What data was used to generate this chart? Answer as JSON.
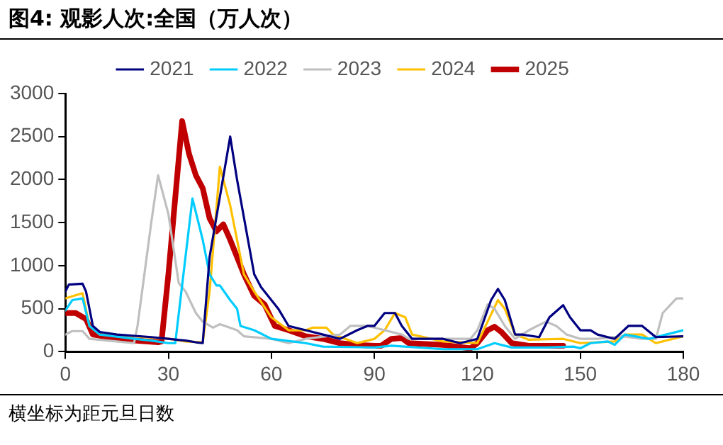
{
  "chart_data": {
    "type": "line",
    "title": "图4:  观影人次:全国（万人次）",
    "annotations": [
      "横坐标为距元旦日数"
    ],
    "xlim": [
      0,
      180
    ],
    "xticks": [
      0,
      30,
      60,
      90,
      120,
      150,
      180
    ],
    "ylim": [
      0,
      3000
    ],
    "yticks": [
      0,
      500,
      1000,
      1500,
      2000,
      2500,
      3000
    ],
    "grid": false,
    "legend": "top",
    "marker": "none",
    "series": [
      {
        "name": "2021",
        "color": "#000080",
        "x": [
          0,
          1,
          5,
          6,
          8,
          10,
          15,
          25,
          30,
          35,
          38,
          40,
          42,
          45,
          48,
          50,
          55,
          57,
          62,
          65,
          70,
          75,
          80,
          85,
          88,
          90,
          93,
          96,
          98,
          101,
          110,
          115,
          120,
          124,
          126,
          128,
          131,
          133,
          138,
          141,
          145,
          147,
          150,
          153,
          155,
          160,
          164,
          168,
          172,
          180
        ],
        "values": [
          700,
          780,
          790,
          700,
          300,
          230,
          200,
          170,
          150,
          130,
          110,
          100,
          1100,
          1800,
          2500,
          2000,
          900,
          750,
          500,
          300,
          250,
          200,
          150,
          250,
          300,
          300,
          450,
          450,
          300,
          150,
          150,
          100,
          150,
          600,
          730,
          600,
          200,
          200,
          170,
          400,
          540,
          400,
          250,
          250,
          200,
          150,
          300,
          300,
          170,
          180
        ]
      },
      {
        "name": "2022",
        "color": "#00ccff",
        "x": [
          0,
          2,
          5,
          7,
          10,
          20,
          25,
          30,
          32,
          37,
          40,
          42,
          44,
          45,
          48,
          50,
          51,
          55,
          60,
          70,
          75,
          90,
          95,
          110,
          120,
          125,
          130,
          140,
          148,
          150,
          153,
          158,
          160,
          163,
          170,
          175,
          180
        ],
        "values": [
          480,
          600,
          620,
          300,
          200,
          150,
          130,
          100,
          100,
          1780,
          1300,
          900,
          770,
          770,
          600,
          500,
          300,
          250,
          150,
          100,
          60,
          50,
          70,
          30,
          30,
          100,
          50,
          50,
          60,
          40,
          100,
          120,
          80,
          200,
          150,
          200,
          250
        ]
      },
      {
        "name": "2023",
        "color": "#bfbfbf",
        "x": [
          0,
          2,
          5,
          7,
          15,
          20,
          21,
          25,
          27,
          30,
          33,
          35,
          38,
          40,
          43,
          45,
          50,
          52,
          60,
          65,
          70,
          80,
          83,
          88,
          93,
          98,
          100,
          110,
          118,
          120,
          123,
          125,
          128,
          131,
          135,
          140,
          143,
          146,
          150,
          155,
          162,
          168,
          172,
          174,
          178,
          180
        ],
        "values": [
          200,
          240,
          240,
          150,
          120,
          100,
          300,
          1500,
          2050,
          1600,
          800,
          700,
          450,
          350,
          280,
          320,
          250,
          180,
          150,
          100,
          150,
          200,
          300,
          300,
          250,
          200,
          150,
          150,
          150,
          250,
          550,
          500,
          300,
          150,
          250,
          350,
          300,
          200,
          150,
          150,
          180,
          150,
          150,
          450,
          620,
          620
        ]
      },
      {
        "name": "2024",
        "color": "#ffc000",
        "x": [
          0,
          5,
          7,
          10,
          20,
          30,
          35,
          40,
          42,
          45,
          48,
          52,
          55,
          60,
          65,
          70,
          72,
          76,
          78,
          85,
          90,
          93,
          96,
          99,
          101,
          110,
          120,
          123,
          126,
          128,
          131,
          135,
          145,
          150,
          160,
          163,
          168,
          172,
          180
        ],
        "values": [
          620,
          680,
          300,
          200,
          180,
          150,
          120,
          110,
          700,
          2150,
          1700,
          900,
          700,
          400,
          250,
          250,
          280,
          280,
          200,
          100,
          150,
          250,
          450,
          400,
          200,
          120,
          100,
          350,
          600,
          500,
          200,
          140,
          150,
          100,
          120,
          200,
          200,
          100,
          180
        ]
      },
      {
        "name": "2025",
        "color": "#c00000",
        "x": [
          0,
          3,
          6,
          8,
          15,
          20,
          27,
          28,
          30,
          34,
          36,
          38,
          40,
          42,
          44,
          46,
          48,
          52,
          55,
          58,
          61,
          65,
          70,
          75,
          80,
          85,
          90,
          92,
          95,
          98,
          100,
          110,
          118,
          120,
          123,
          125,
          127,
          130,
          135,
          140,
          145
        ],
        "values": [
          450,
          450,
          380,
          200,
          150,
          130,
          110,
          120,
          900,
          2680,
          2300,
          2050,
          1900,
          1550,
          1400,
          1480,
          1300,
          900,
          650,
          550,
          300,
          250,
          180,
          150,
          100,
          80,
          70,
          70,
          150,
          160,
          100,
          80,
          40,
          100,
          250,
          290,
          230,
          100,
          70,
          70,
          70
        ]
      }
    ]
  }
}
